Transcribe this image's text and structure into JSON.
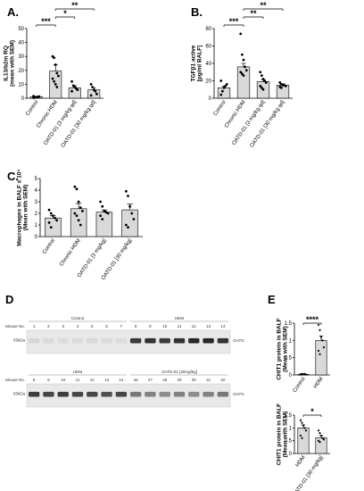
{
  "panels": {
    "A": "A.",
    "B": "B.",
    "C": "C.",
    "D": "D",
    "E": "E"
  },
  "chart_data": [
    {
      "id": "A",
      "type": "bar",
      "ylabel": "IL13/b2m RQ\n(mean with SEM)",
      "ylim": [
        0,
        50
      ],
      "yticks": [
        0,
        10,
        20,
        30,
        40,
        50
      ],
      "categories": [
        "Control",
        "Chronic HDM",
        "OATD-01 [3 mg/kg qd]",
        "OATD-01 [30 mg/kg qd]"
      ],
      "values": [
        1,
        19.5,
        7.5,
        6
      ],
      "sem": [
        0.3,
        4.5,
        1.5,
        1.5
      ],
      "points": [
        [
          0.3,
          0.6,
          0.8,
          1.0,
          1.2,
          1.5
        ],
        [
          30,
          29,
          24,
          18,
          16,
          14,
          12,
          10,
          8
        ],
        [
          12,
          9,
          8,
          7,
          6,
          5
        ],
        [
          10,
          8,
          6,
          5,
          3,
          2
        ]
      ],
      "significance": [
        {
          "from": 0,
          "to": 1,
          "label": "***"
        },
        {
          "from": 1,
          "to": 2,
          "label": "*"
        },
        {
          "from": 1,
          "to": 3,
          "label": "**"
        }
      ]
    },
    {
      "id": "B",
      "type": "bar",
      "ylabel": "TGFβ1 active\n[pg/ml BALF]",
      "ylim": [
        0,
        80
      ],
      "yticks": [
        0,
        20,
        40,
        60,
        80
      ],
      "categories": [
        "Control",
        "Chronic HDM",
        "OATD-01 [3 mg/kg qd]",
        "OATD-01 [30 mg/kg qd]"
      ],
      "values": [
        12,
        36,
        19,
        15
      ],
      "sem": [
        2,
        4,
        2.5,
        1.5
      ],
      "points": [
        [
          4,
          8,
          12,
          14,
          16,
          20
        ],
        [
          74,
          50,
          44,
          36,
          32,
          30,
          28,
          26
        ],
        [
          30,
          26,
          22,
          20,
          18,
          14,
          12,
          10
        ],
        [
          18,
          16,
          15,
          15,
          14,
          13,
          12
        ]
      ],
      "significance": [
        {
          "from": 0,
          "to": 1,
          "label": "***"
        },
        {
          "from": 1,
          "to": 2,
          "label": "**"
        },
        {
          "from": 1,
          "to": 3,
          "label": "**"
        }
      ]
    },
    {
      "id": "C",
      "type": "bar",
      "ylabel": "Macrophages in BALF x 10⁴\n(Mean with SEM)",
      "ylim": [
        0,
        5
      ],
      "yticks": [
        0,
        1,
        2,
        3,
        4,
        5
      ],
      "categories": [
        "Control",
        "Chronic HDM",
        "OATD-01 [3 mg/kg]",
        "OATD-01 [30 mg/kg]"
      ],
      "values": [
        1.6,
        2.4,
        2.1,
        2.3
      ],
      "sem": [
        0.2,
        0.45,
        0.2,
        0.5
      ],
      "points": [
        [
          2.3,
          2.0,
          1.8,
          1.6,
          1.4,
          1.2,
          0.8
        ],
        [
          4.3,
          4.1,
          3.0,
          2.5,
          2.2,
          2.0,
          1.8,
          1.4,
          1.0
        ],
        [
          3.0,
          2.6,
          2.2,
          2.1,
          2.0,
          1.8,
          1.5
        ],
        [
          3.9,
          3.5,
          2.6,
          2.0,
          1.5,
          1.0,
          0.8
        ]
      ],
      "significance": []
    },
    {
      "id": "E1",
      "type": "bar",
      "ylabel": "CHIT1 protein in BALF\n(Mean with SEM)",
      "ylim": [
        0,
        1.5
      ],
      "yticks": [
        0,
        0.5,
        1.0,
        1.5
      ],
      "categories": [
        "Control",
        "HDM"
      ],
      "values": [
        0.02,
        1.0
      ],
      "sem": [
        0.01,
        0.13
      ],
      "points": [
        [
          0.01,
          0.02,
          0.02,
          0.03,
          0.01,
          0.02,
          0.03
        ],
        [
          1.45,
          1.3,
          1.1,
          1.0,
          0.8,
          0.7,
          0.6
        ]
      ],
      "significance": [
        {
          "from": 0,
          "to": 1,
          "label": "****"
        }
      ]
    },
    {
      "id": "E2",
      "type": "bar",
      "ylabel": "CHIT1 protein in BALF\n(Mean with SEM)",
      "ylim": [
        0,
        1.5
      ],
      "yticks": [
        0,
        0.5,
        1.0,
        1.5
      ],
      "categories": [
        "HDM",
        "OATD-01 [30 mg/kg]"
      ],
      "values": [
        1.0,
        0.62
      ],
      "sem": [
        0.12,
        0.08
      ],
      "points": [
        [
          1.3,
          1.2,
          1.1,
          1.0,
          0.9,
          0.7,
          0.6
        ],
        [
          0.9,
          0.8,
          0.7,
          0.6,
          0.55,
          0.5,
          0.45
        ]
      ],
      "significance": [
        {
          "from": 0,
          "to": 1,
          "label": "*"
        }
      ]
    }
  ],
  "blots": {
    "mouse_no_label": "Mouse No.",
    "kda_label": "55kDa",
    "band_label": "CHIT1",
    "top": {
      "groups": [
        {
          "name": "Control",
          "span": [
            0,
            6
          ]
        },
        {
          "name": "HDM",
          "span": [
            7,
            13
          ]
        }
      ],
      "mice": [
        "1",
        "2",
        "3",
        "4",
        "5",
        "6",
        "7",
        "8",
        "9",
        "10",
        "11",
        "12",
        "13",
        "14"
      ],
      "intensity": [
        0.08,
        0.06,
        0.05,
        0.06,
        0.07,
        0.06,
        0.05,
        0.85,
        0.9,
        0.85,
        0.9,
        0.95,
        0.95,
        0.9
      ]
    },
    "bottom": {
      "groups": [
        {
          "name": "HDM",
          "span": [
            0,
            6
          ]
        },
        {
          "name": "OATD-01 [30mg/kg]",
          "span": [
            7,
            13
          ]
        }
      ],
      "mice": [
        "8",
        "9",
        "10",
        "11",
        "12",
        "13",
        "14",
        "26",
        "27",
        "28",
        "29",
        "30",
        "31",
        "32"
      ],
      "intensity": [
        0.85,
        0.8,
        0.85,
        0.8,
        0.8,
        0.75,
        0.8,
        0.55,
        0.5,
        0.45,
        0.5,
        0.45,
        0.5,
        0.55
      ]
    }
  }
}
